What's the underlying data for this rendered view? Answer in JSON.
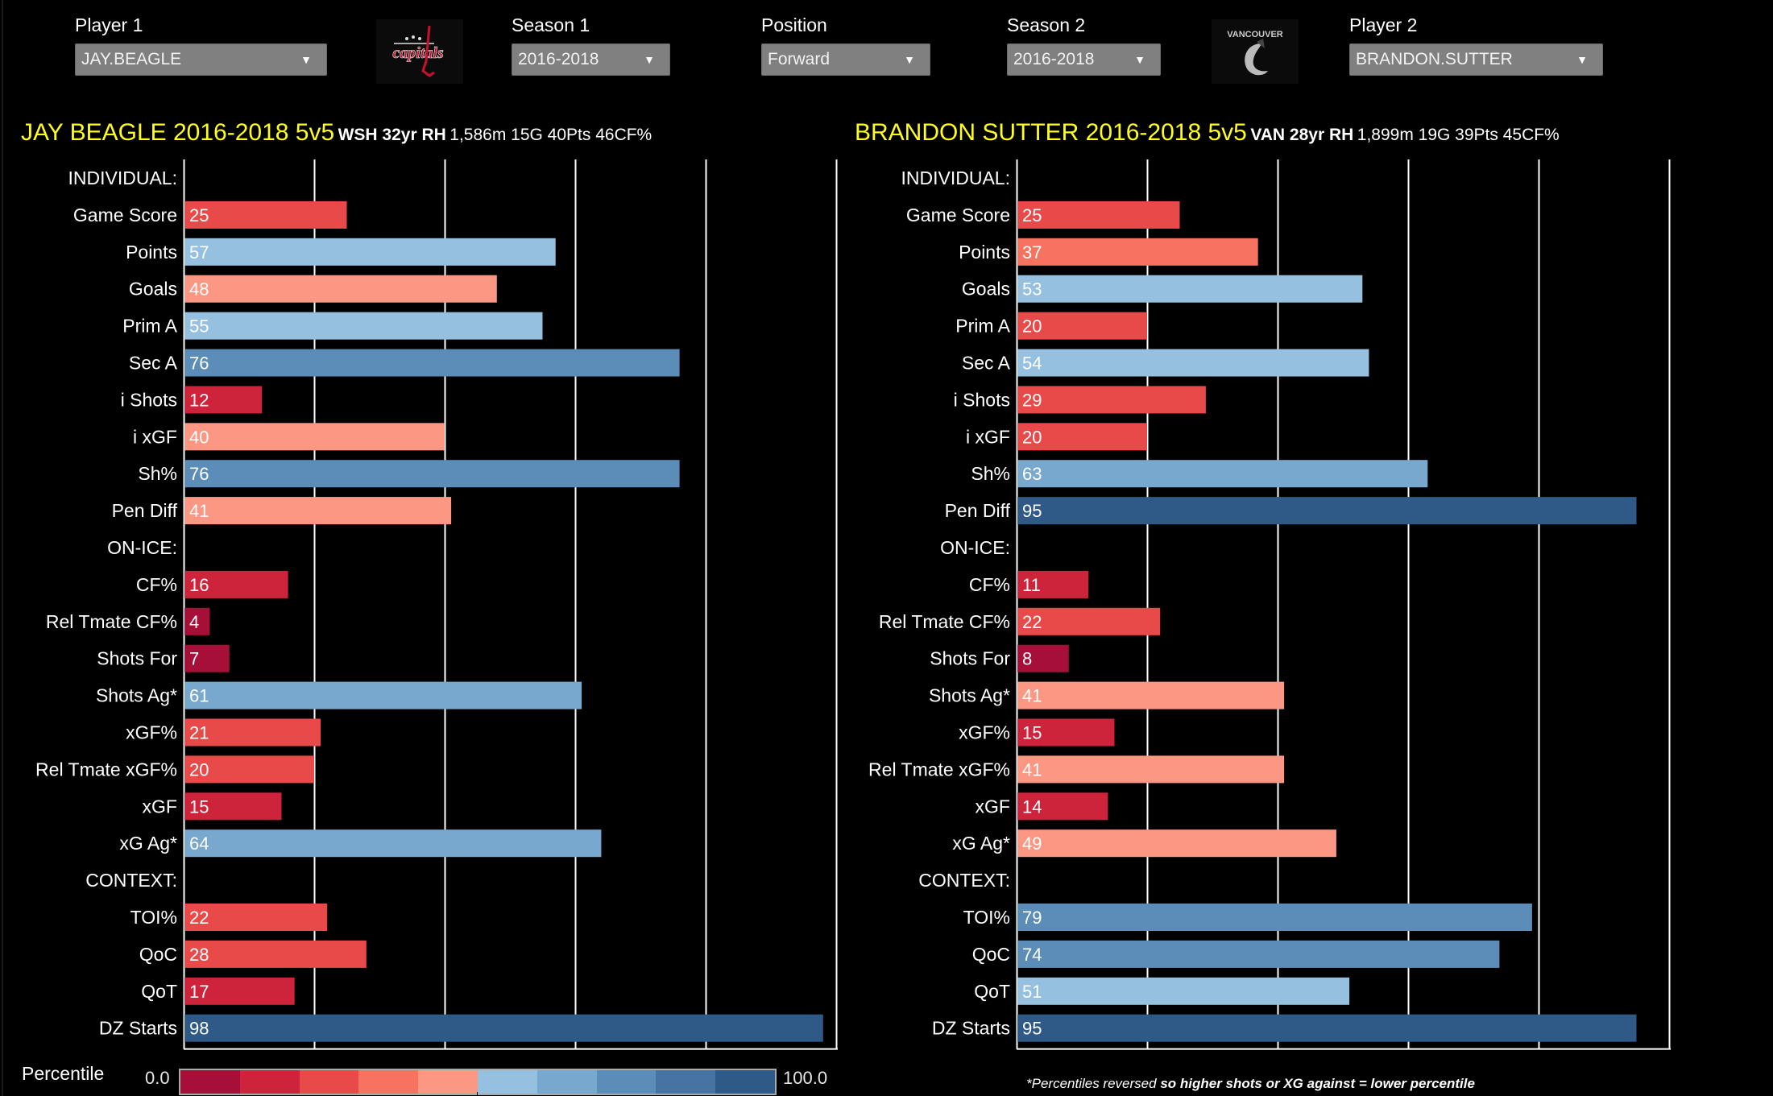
{
  "filters": {
    "player1": {
      "label": "Player 1",
      "value": "JAY.BEAGLE"
    },
    "season1": {
      "label": "Season 1",
      "value": "2016-2018"
    },
    "position": {
      "label": "Position",
      "value": "Forward"
    },
    "season2": {
      "label": "Season 2",
      "value": "2016-2018"
    },
    "player2": {
      "label": "Player 2",
      "value": "BRANDON.SUTTER"
    },
    "caret": "▼"
  },
  "logos": {
    "team1": {
      "name": "capitals-logo",
      "text": "capitals"
    },
    "team2": {
      "name": "canucks-logo",
      "text": "VANCOUVER"
    }
  },
  "colors": {
    "background": "#000000",
    "title": "#ffff1a",
    "scale": [
      "#a50f38",
      "#cd233b",
      "#e84a4a",
      "#f6735f",
      "#fc9784",
      "#95c0e0",
      "#78a8cd",
      "#5b8db8",
      "#4673a1",
      "#2f5a87"
    ],
    "grid": "#ffffff"
  },
  "chart_data": [
    {
      "type": "bar",
      "orientation": "horizontal",
      "title": "JAY BEAGLE 2016-2018  5v5",
      "subtitle_bold": "WSH 32yr RH",
      "subtitle": "1,586m 15G 40Pts 46CF%",
      "xlim": [
        0,
        100
      ],
      "grid": true,
      "categories": [
        "INDIVIDUAL:",
        "Game Score",
        "Points",
        "Goals",
        "Prim A",
        "Sec A",
        "i Shots",
        "i xGF",
        "Sh%",
        "Pen Diff",
        "ON-ICE:",
        "CF%",
        "Rel Tmate CF%",
        "Shots For",
        "Shots Ag*",
        "xGF%",
        "Rel Tmate xGF%",
        "xGF",
        "xG Ag*",
        "CONTEXT:",
        "TOI%",
        "QoC",
        "QoT",
        "DZ Starts"
      ],
      "values": [
        null,
        25,
        57,
        48,
        55,
        76,
        12,
        40,
        76,
        41,
        null,
        16,
        4,
        7,
        61,
        21,
        20,
        15,
        64,
        null,
        22,
        28,
        17,
        98
      ]
    },
    {
      "type": "bar",
      "orientation": "horizontal",
      "title": "BRANDON SUTTER 2016-2018  5v5",
      "subtitle_bold": "VAN 28yr RH",
      "subtitle": "1,899m 19G 39Pts 45CF%",
      "xlim": [
        0,
        100
      ],
      "grid": true,
      "categories": [
        "INDIVIDUAL:",
        "Game Score",
        "Points",
        "Goals",
        "Prim A",
        "Sec A",
        "i Shots",
        "i xGF",
        "Sh%",
        "Pen Diff",
        "ON-ICE:",
        "CF%",
        "Rel Tmate CF%",
        "Shots For",
        "Shots Ag*",
        "xGF%",
        "Rel Tmate xGF%",
        "xGF",
        "xG Ag*",
        "CONTEXT:",
        "TOI%",
        "QoC",
        "QoT",
        "DZ Starts"
      ],
      "values": [
        null,
        25,
        37,
        53,
        20,
        54,
        29,
        20,
        63,
        95,
        null,
        11,
        22,
        8,
        41,
        15,
        41,
        14,
        49,
        null,
        79,
        74,
        51,
        95
      ]
    }
  ],
  "legend": {
    "title": "Percentile",
    "min_label": "0.0",
    "max_label": "100.0",
    "steps": 10
  },
  "footnote": {
    "part1": "*Percentiles reversed ",
    "part2": " so higher shots or XG against = lower percentile"
  }
}
